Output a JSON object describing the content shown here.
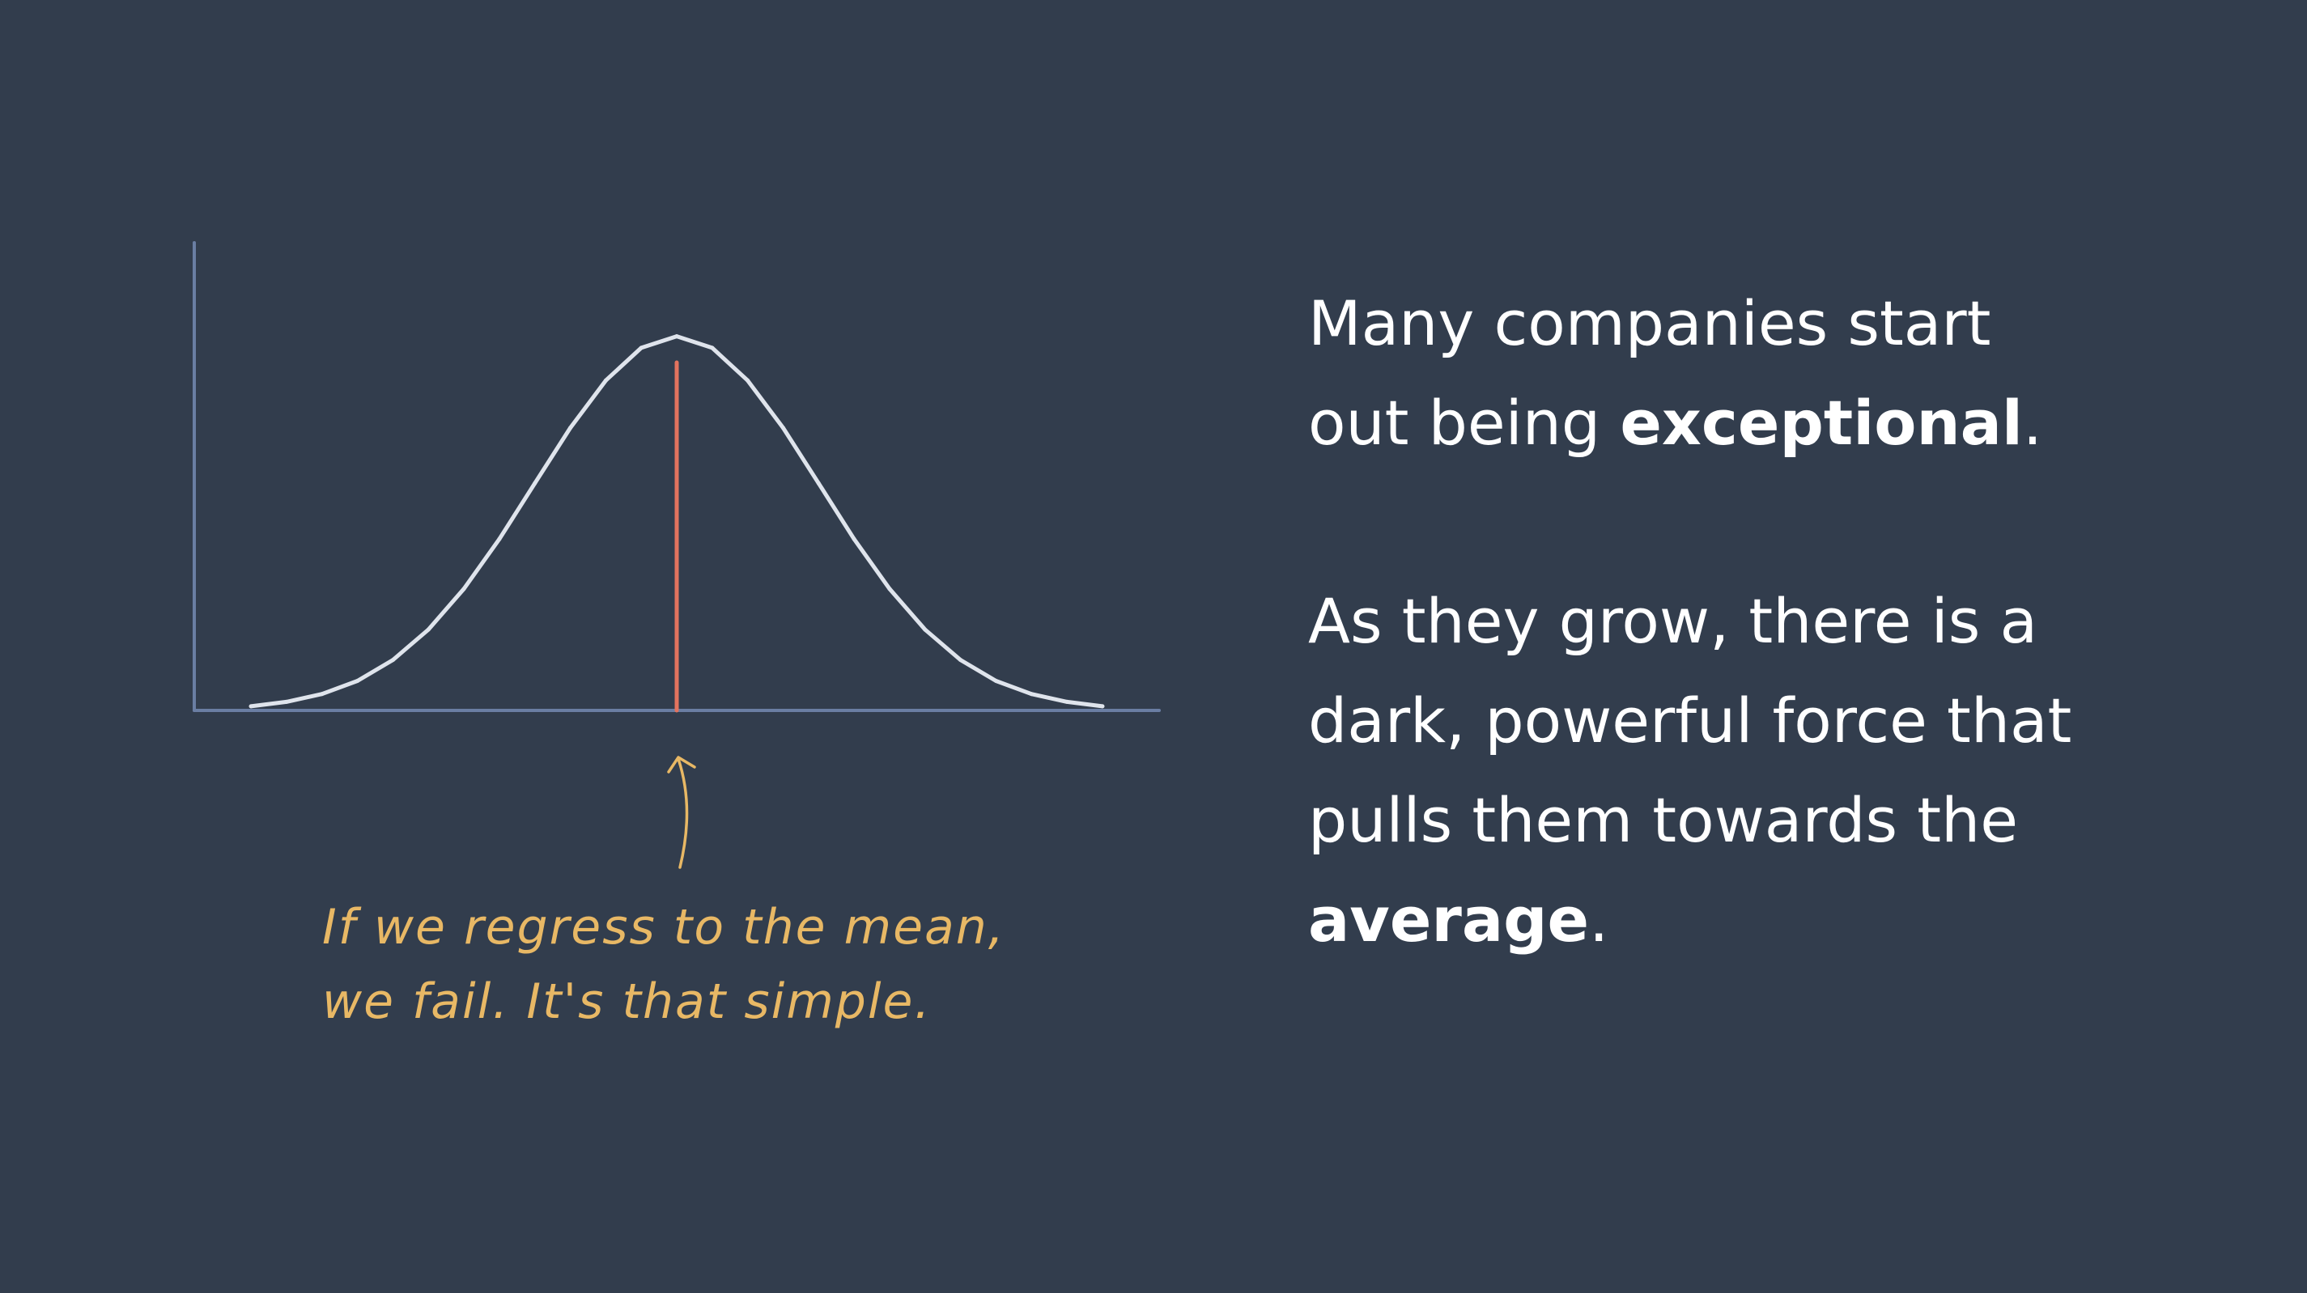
{
  "colors": {
    "background": "#323d4d",
    "axis": "#6a7ea3",
    "curve": "#dfe4ec",
    "mean_line": "#e3735e",
    "annotation": "#e8b865",
    "text": "#ffffff"
  },
  "chart_data": {
    "type": "line",
    "title": "",
    "xlabel": "",
    "ylabel": "",
    "grid": false,
    "legend": "none",
    "x_ticks": [],
    "y_ticks": [],
    "xlim": [
      -3.4,
      3.4
    ],
    "ylim": [
      0,
      1.25
    ],
    "series": [
      {
        "curve": "normal distribution",
        "mean": 0,
        "std": 1,
        "x": [
          -3.0,
          -2.75,
          -2.5,
          -2.25,
          -2.0,
          -1.75,
          -1.5,
          -1.25,
          -1.0,
          -0.75,
          -0.5,
          -0.25,
          0.0,
          0.25,
          0.5,
          0.75,
          1.0,
          1.25,
          1.5,
          1.75,
          2.0,
          2.25,
          2.5,
          2.75,
          3.0
        ],
        "y": [
          0.011,
          0.023,
          0.044,
          0.079,
          0.135,
          0.216,
          0.325,
          0.458,
          0.607,
          0.755,
          0.882,
          0.969,
          1.0,
          0.969,
          0.882,
          0.755,
          0.607,
          0.458,
          0.325,
          0.216,
          0.135,
          0.079,
          0.044,
          0.023,
          0.011
        ]
      }
    ],
    "markers": [
      {
        "kind": "vertical-line",
        "x": 0,
        "y_top": 0.93,
        "color": "#e3735e"
      }
    ],
    "annotation": {
      "lines": [
        "If we regress to the mean,",
        "we fail. It's that simple."
      ],
      "points_to_x": 0
    }
  },
  "annotation": {
    "line1": "If we regress to the mean,",
    "line2": "we fail. It's that simple."
  },
  "text": {
    "p1_line1": "Many companies start",
    "p1_line2_before": "out being ",
    "p1_bold": "exceptional",
    "p1_after": ".",
    "p2_line1": "As they grow, there is a",
    "p2_line2": "dark, powerful force that",
    "p2_line3": "pulls them towards the",
    "p2_bold": "average",
    "p2_after": "."
  }
}
